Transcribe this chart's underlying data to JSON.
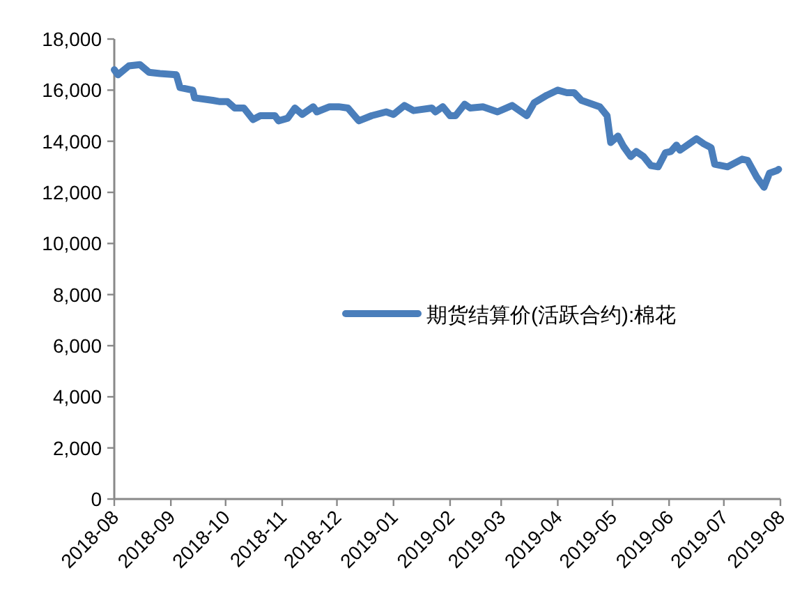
{
  "chart_data": {
    "type": "line",
    "x": [
      "2018-08-01",
      "2018-08-03",
      "2018-08-09",
      "2018-08-15",
      "2018-08-20",
      "2018-08-26",
      "2018-09-04",
      "2018-09-06",
      "2018-09-13",
      "2018-09-14",
      "2018-09-24",
      "2018-09-28",
      "2018-10-02",
      "2018-10-06",
      "2018-10-11",
      "2018-10-16",
      "2018-10-20",
      "2018-10-28",
      "2018-10-30",
      "2018-11-04",
      "2018-11-08",
      "2018-11-12",
      "2018-11-18",
      "2018-11-20",
      "2018-11-27",
      "2018-12-02",
      "2018-12-07",
      "2018-12-13",
      "2018-12-20",
      "2018-12-28",
      "2019-01-01",
      "2019-01-07",
      "2019-01-12",
      "2019-01-22",
      "2019-01-24",
      "2019-01-28",
      "2019-02-01",
      "2019-02-04",
      "2019-02-09",
      "2019-02-12",
      "2019-02-19",
      "2019-02-27",
      "2019-03-07",
      "2019-03-15",
      "2019-03-19",
      "2019-03-26",
      "2019-04-01",
      "2019-04-06",
      "2019-04-10",
      "2019-04-14",
      "2019-04-24",
      "2019-04-28",
      "2019-04-30",
      "2019-05-04",
      "2019-05-07",
      "2019-05-11",
      "2019-05-14",
      "2019-05-18",
      "2019-05-22",
      "2019-05-26",
      "2019-05-30",
      "2019-06-02",
      "2019-06-05",
      "2019-06-07",
      "2019-06-12",
      "2019-06-16",
      "2019-06-20",
      "2019-06-24",
      "2019-06-26",
      "2019-07-03",
      "2019-07-11",
      "2019-07-14",
      "2019-07-19",
      "2019-07-23",
      "2019-07-26",
      "2019-07-30",
      "2019-07-31"
    ],
    "series": [
      {
        "name": "期货结算价(活跃合约):棉花",
        "color": "#4a7ebb",
        "values": [
          16800,
          16600,
          16950,
          17000,
          16700,
          16650,
          16600,
          16100,
          16000,
          15700,
          15600,
          15550,
          15550,
          15300,
          15300,
          14850,
          15000,
          15000,
          14800,
          14900,
          15300,
          15050,
          15350,
          15150,
          15350,
          15350,
          15300,
          14800,
          15000,
          15150,
          15050,
          15400,
          15200,
          15300,
          15150,
          15350,
          15000,
          15000,
          15450,
          15300,
          15350,
          15150,
          15400,
          15000,
          15500,
          15800,
          16000,
          15900,
          15900,
          15600,
          15350,
          15000,
          13950,
          14200,
          13800,
          13400,
          13600,
          13400,
          13050,
          13000,
          13550,
          13600,
          13850,
          13650,
          13900,
          14100,
          13900,
          13750,
          13100,
          13000,
          13300,
          13250,
          12600,
          12200,
          12750,
          12850,
          12900
        ]
      }
    ],
    "xlim": [
      "2018-08-01",
      "2019-08-01"
    ],
    "xticks": [
      {
        "value": "2018-08-01",
        "label": "2018-08"
      },
      {
        "value": "2018-09-01",
        "label": "2018-09"
      },
      {
        "value": "2018-10-01",
        "label": "2018-10"
      },
      {
        "value": "2018-11-01",
        "label": "2018-11"
      },
      {
        "value": "2018-12-01",
        "label": "2018-12"
      },
      {
        "value": "2019-01-01",
        "label": "2019-01"
      },
      {
        "value": "2019-02-01",
        "label": "2019-02"
      },
      {
        "value": "2019-03-01",
        "label": "2019-03"
      },
      {
        "value": "2019-04-01",
        "label": "2019-04"
      },
      {
        "value": "2019-05-01",
        "label": "2019-05"
      },
      {
        "value": "2019-06-01",
        "label": "2019-06"
      },
      {
        "value": "2019-07-01",
        "label": "2019-07"
      },
      {
        "value": "2019-08-01",
        "label": "2019-08"
      }
    ],
    "ylim": [
      0,
      18000
    ],
    "yticks": [
      {
        "value": 0,
        "label": "0"
      },
      {
        "value": 2000,
        "label": "2,000"
      },
      {
        "value": 4000,
        "label": "4,000"
      },
      {
        "value": 6000,
        "label": "6,000"
      },
      {
        "value": 8000,
        "label": "8,000"
      },
      {
        "value": 10000,
        "label": "10,000"
      },
      {
        "value": 12000,
        "label": "12,000"
      },
      {
        "value": 14000,
        "label": "14,000"
      },
      {
        "value": 16000,
        "label": "16,000"
      },
      {
        "value": 18000,
        "label": "18,000"
      }
    ],
    "grid": false,
    "legend": "right",
    "marker": "none",
    "line_style": "solid"
  }
}
